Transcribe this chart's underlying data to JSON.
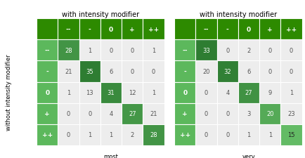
{
  "table1": {
    "title": "with intensity modifier",
    "xlabel": "most",
    "ylabel": "without intensity modifier",
    "col_labels": [
      "--",
      "-",
      "0",
      "+",
      "++"
    ],
    "row_labels": [
      "--",
      "-",
      "0",
      "+",
      "++"
    ],
    "values": [
      [
        28,
        1,
        0,
        0,
        1
      ],
      [
        21,
        35,
        6,
        0,
        0
      ],
      [
        1,
        13,
        31,
        12,
        1
      ],
      [
        0,
        0,
        4,
        27,
        21
      ],
      [
        0,
        1,
        1,
        2,
        28
      ]
    ]
  },
  "table2": {
    "title": "with intensity modifier",
    "xlabel": "very",
    "ylabel": "",
    "col_labels": [
      "--",
      "-",
      "0",
      "+",
      "++"
    ],
    "row_labels": [
      "--",
      "-",
      "0",
      "+",
      "++"
    ],
    "values": [
      [
        33,
        0,
        2,
        0,
        0
      ],
      [
        20,
        32,
        6,
        0,
        0
      ],
      [
        0,
        4,
        27,
        9,
        1
      ],
      [
        0,
        0,
        3,
        20,
        23
      ],
      [
        0,
        0,
        1,
        1,
        15
      ]
    ]
  },
  "header_bg": "#2d8a00",
  "row_header_bg": "#5cb85c",
  "cell_bg_diag_light": [
    144,
    238,
    144
  ],
  "cell_bg_diag_dark": [
    46,
    125,
    50
  ],
  "cell_bg_off": [
    0.93,
    0.93,
    0.93
  ],
  "header_text_color": "#ffffff",
  "title_fontsize": 7,
  "label_fontsize": 6,
  "cell_fontsize": 6,
  "header_fontsize": 6.5
}
